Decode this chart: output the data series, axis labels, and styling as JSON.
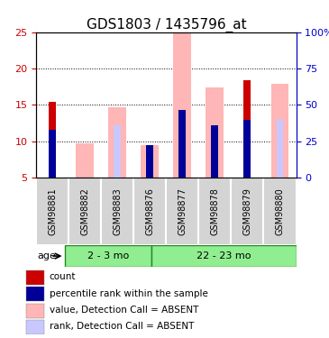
{
  "title": "GDS1803 / 1435796_at",
  "samples": [
    "GSM98881",
    "GSM98882",
    "GSM98883",
    "GSM98876",
    "GSM98877",
    "GSM98878",
    "GSM98879",
    "GSM98880"
  ],
  "group_labels": [
    "2 - 3 mo",
    "22 - 23 mo"
  ],
  "group_spans": [
    3,
    5
  ],
  "ylim": [
    5,
    25
  ],
  "yticks_left": [
    5,
    10,
    15,
    20,
    25
  ],
  "yticks_right": [
    0,
    25,
    50,
    75,
    100
  ],
  "ylabel_left_color": "#cc0000",
  "ylabel_right_color": "#0000cc",
  "red_bars": [
    15.4,
    0,
    0,
    8.9,
    0,
    0,
    18.4,
    0
  ],
  "pink_bars": [
    0,
    9.7,
    14.7,
    9.4,
    24.8,
    17.4,
    0,
    17.9
  ],
  "blue_bars": [
    11.6,
    0,
    0,
    9.5,
    14.3,
    12.2,
    12.9,
    0
  ],
  "light_blue_bars": [
    0,
    0,
    12.2,
    0,
    0,
    12.2,
    13.1,
    13.1
  ],
  "plot_bg": "#ffffff",
  "legend_items": [
    {
      "label": "count",
      "color": "#cc0000"
    },
    {
      "label": "percentile rank within the sample",
      "color": "#000099"
    },
    {
      "label": "value, Detection Call = ABSENT",
      "color": "#ffb6b6"
    },
    {
      "label": "rank, Detection Call = ABSENT",
      "color": "#c8c8ff"
    }
  ],
  "age_label": "age"
}
